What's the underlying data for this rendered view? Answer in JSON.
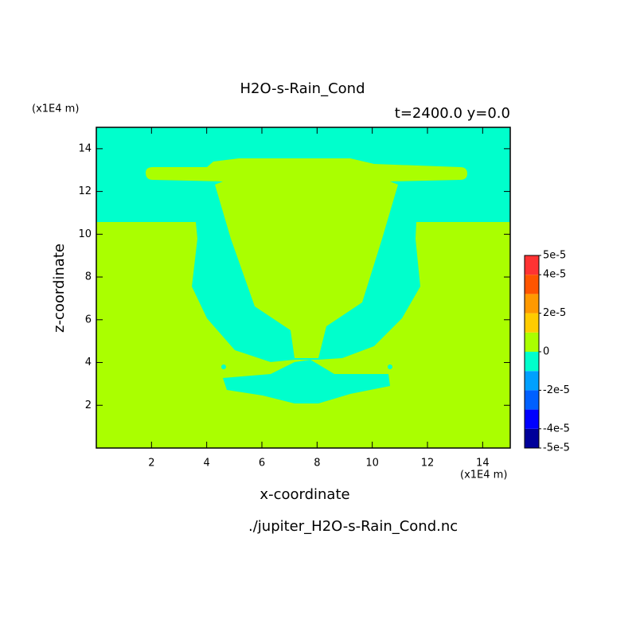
{
  "chart_data": {
    "type": "contour",
    "title": "H2O-s-Rain_Cond",
    "subtitle": "t=2400.0 y=0.0",
    "x_label": "x-coordinate",
    "y_label": "z-coordinate",
    "x_unit": "(x1E4 m)",
    "y_unit": "(x1E4 m)",
    "source": "./jupiter_H2O-s-Rain_Cond.nc",
    "xlim": [
      0,
      15
    ],
    "ylim": [
      0,
      15
    ],
    "xticks": [
      2,
      4,
      6,
      8,
      10,
      12,
      14
    ],
    "yticks": [
      2,
      4,
      6,
      8,
      10,
      12,
      14
    ],
    "colorbar": {
      "levels": [
        -5e-05,
        -4e-05,
        -3e-05,
        -2e-05,
        -1e-05,
        0,
        1e-05,
        2e-05,
        3e-05,
        4e-05,
        5e-05
      ],
      "colors": [
        "#00009a",
        "#0000ff",
        "#0060ff",
        "#00a0ff",
        "#00ffcc",
        "#aaff00",
        "#ffcc00",
        "#ff9900",
        "#ff5500",
        "#ff3333"
      ],
      "ticks": [
        {
          "value": -5e-05,
          "label": "-5e-5"
        },
        {
          "value": -4e-05,
          "label": "-4e-5"
        },
        {
          "value": -2e-05,
          "label": "-2e-5"
        },
        0,
        {
          "value": 2e-05,
          "label": "2e-5"
        },
        {
          "value": 4e-05,
          "label": "4e-5"
        },
        {
          "value": 5e-05,
          "label": "5e-5"
        }
      ]
    }
  }
}
